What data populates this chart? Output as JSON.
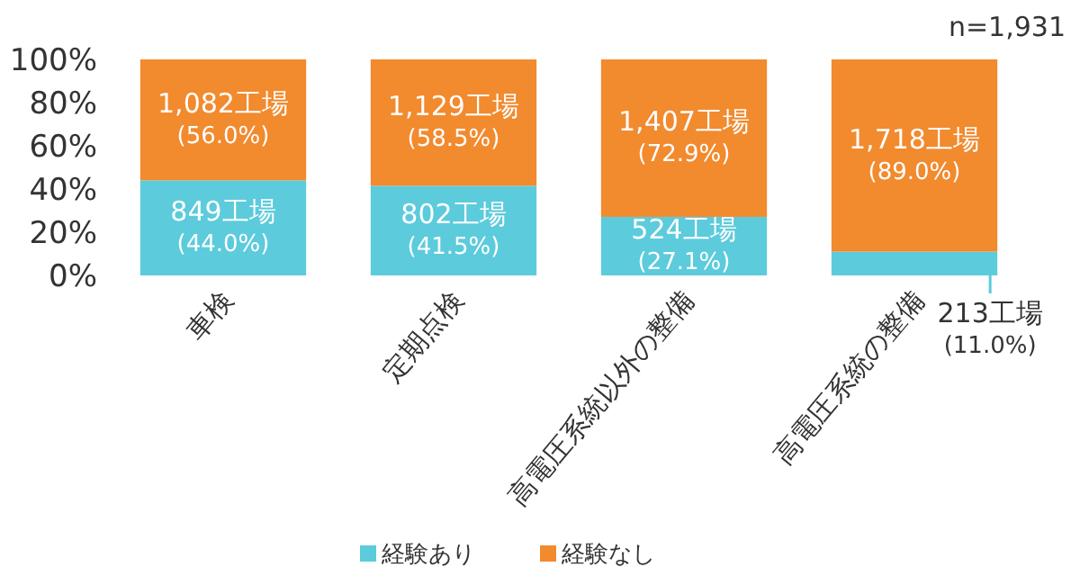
{
  "chart_data": {
    "type": "bar",
    "stacked": true,
    "categories": [
      "車検",
      "定期点検",
      "高電圧系統以外の整備",
      "高電圧系統の整備"
    ],
    "series": [
      {
        "name": "経験あり",
        "color": "#5ccbdc",
        "values": [
          44.0,
          41.5,
          27.1,
          11.0
        ],
        "value_labels": [
          "849工場\n(44.0%)",
          "802工場\n(41.5%)",
          "524工場\n(27.1%)",
          "213工場\n(11.0%)"
        ]
      },
      {
        "name": "経験なし",
        "color": "#f28a2e",
        "values": [
          56.0,
          58.5,
          72.9,
          89.0
        ],
        "value_labels": [
          "1,082工場\n(56.0%)",
          "1,129工場\n(58.5%)",
          "1,407工場\n(72.9%)",
          "1,718工場\n(89.0%)"
        ]
      }
    ],
    "ylim": [
      0,
      100
    ],
    "yticks": [
      {
        "value": 0,
        "label": "0%"
      },
      {
        "value": 20,
        "label": "20%"
      },
      {
        "value": 40,
        "label": "40%"
      },
      {
        "value": 60,
        "label": "60%"
      },
      {
        "value": 80,
        "label": "80%"
      },
      {
        "value": 100,
        "label": "100%"
      }
    ],
    "annotations": [
      "n=1,931"
    ],
    "legend": "bottom",
    "grid": false
  }
}
